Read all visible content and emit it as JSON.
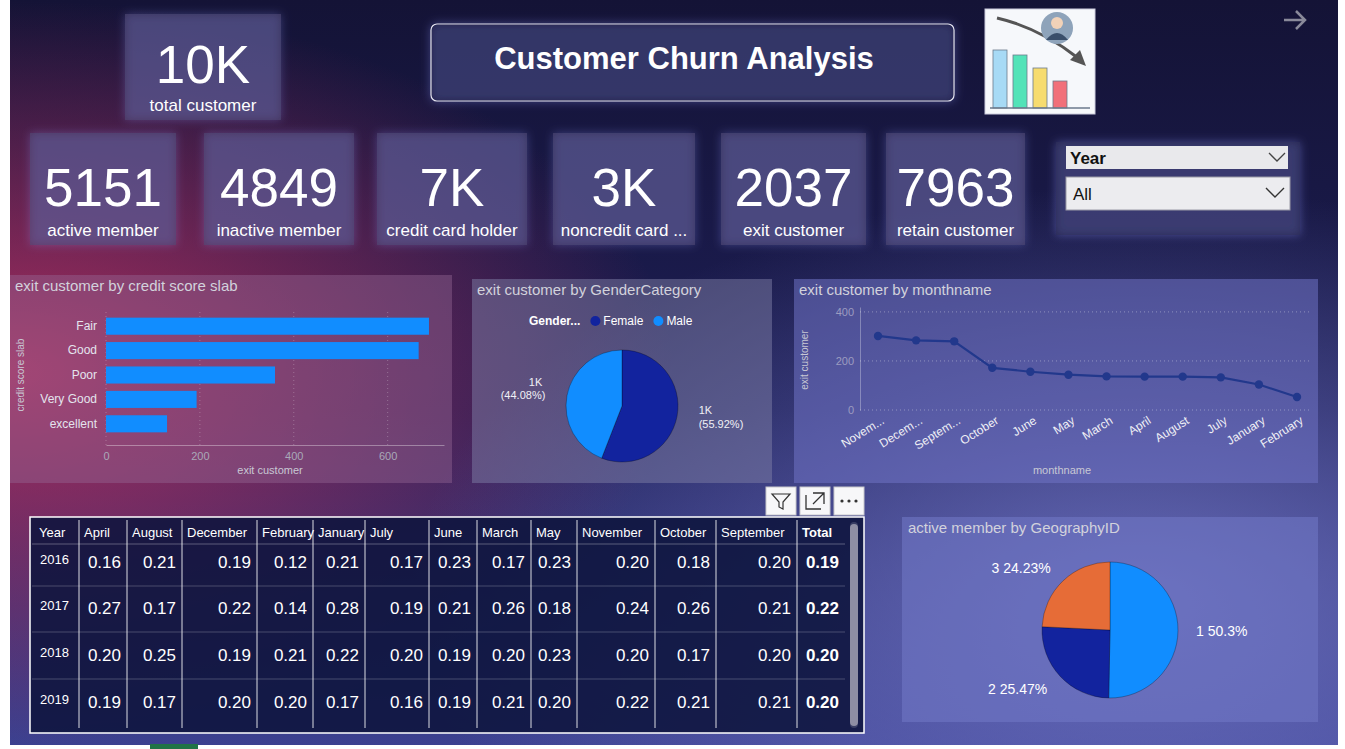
{
  "title": "Customer Churn Analysis",
  "kpis": [
    {
      "value": "10K",
      "label": "total customer"
    },
    {
      "value": "5151",
      "label": "active member"
    },
    {
      "value": "4849",
      "label": "inactive member"
    },
    {
      "value": "7K",
      "label": "credit card holder"
    },
    {
      "value": "3K",
      "label": "noncredit card ..."
    },
    {
      "value": "2037",
      "label": "exit customer"
    },
    {
      "value": "7963",
      "label": "retain customer"
    }
  ],
  "slicer": {
    "label": "Year",
    "value": "All"
  },
  "chart_data": [
    {
      "type": "bar",
      "title": "exit customer by credit score slab",
      "orientation": "horizontal",
      "categories": [
        "Fair",
        "Good",
        "Poor",
        "Very Good",
        "excellent"
      ],
      "values": [
        688,
        666,
        360,
        193,
        130
      ],
      "color": "#118dff",
      "xlim": [
        0,
        720
      ],
      "xticks": [
        0,
        200,
        400,
        600
      ],
      "grid": true,
      "x_label": "exit customer",
      "y_label": "credit score slab"
    },
    {
      "type": "pie",
      "title": "exit customer by GenderCategory",
      "legend_title": "Gender...",
      "categories": [
        "Female",
        "Male"
      ],
      "values": [
        1139,
        898
      ],
      "value_labels": [
        "1K (55.92%)",
        "1K (44.08%)"
      ],
      "colors": [
        "#12239e",
        "#118dff"
      ],
      "legend": "top",
      "data_labels": true
    },
    {
      "type": "line",
      "title": "exit customer by monthname",
      "categories": [
        "Novem...",
        "Decem...",
        "Septem...",
        "October",
        "June",
        "May",
        "March",
        "April",
        "August",
        "July",
        "January",
        "February"
      ],
      "values": [
        302,
        284,
        280,
        172,
        156,
        144,
        137,
        136,
        136,
        133,
        104,
        53
      ],
      "color": "#22388c",
      "marker": "circle",
      "ylim": [
        0,
        420
      ],
      "yticks": [
        0,
        200,
        400
      ],
      "grid": true,
      "x_label": "monthname",
      "y_label": "exit customer"
    },
    {
      "type": "pie",
      "title": "active member by GeographyID",
      "categories": [
        "1",
        "2",
        "3"
      ],
      "values": [
        50.3,
        25.47,
        24.23
      ],
      "value_labels": [
        "50.3%",
        "25.47%",
        "24.23%"
      ],
      "colors": [
        "#118dff",
        "#12239e",
        "#e66c37"
      ],
      "data_labels": true
    }
  ],
  "table": {
    "columns": [
      "Year",
      "April",
      "August",
      "December",
      "February",
      "January",
      "July",
      "June",
      "March",
      "May",
      "November",
      "October",
      "September",
      "Total"
    ],
    "rows": [
      [
        "2016",
        "0.16",
        "0.21",
        "0.19",
        "0.12",
        "0.21",
        "0.17",
        "0.23",
        "0.17",
        "0.23",
        "0.20",
        "0.18",
        "0.20",
        "0.19"
      ],
      [
        "2017",
        "0.27",
        "0.17",
        "0.22",
        "0.14",
        "0.28",
        "0.19",
        "0.21",
        "0.26",
        "0.18",
        "0.24",
        "0.26",
        "0.21",
        "0.22"
      ],
      [
        "2018",
        "0.20",
        "0.25",
        "0.19",
        "0.21",
        "0.22",
        "0.20",
        "0.19",
        "0.20",
        "0.23",
        "0.20",
        "0.17",
        "0.20",
        "0.20"
      ],
      [
        "2019",
        "0.19",
        "0.17",
        "0.20",
        "0.20",
        "0.17",
        "0.16",
        "0.19",
        "0.21",
        "0.20",
        "0.22",
        "0.21",
        "0.21",
        "0.20"
      ]
    ]
  }
}
